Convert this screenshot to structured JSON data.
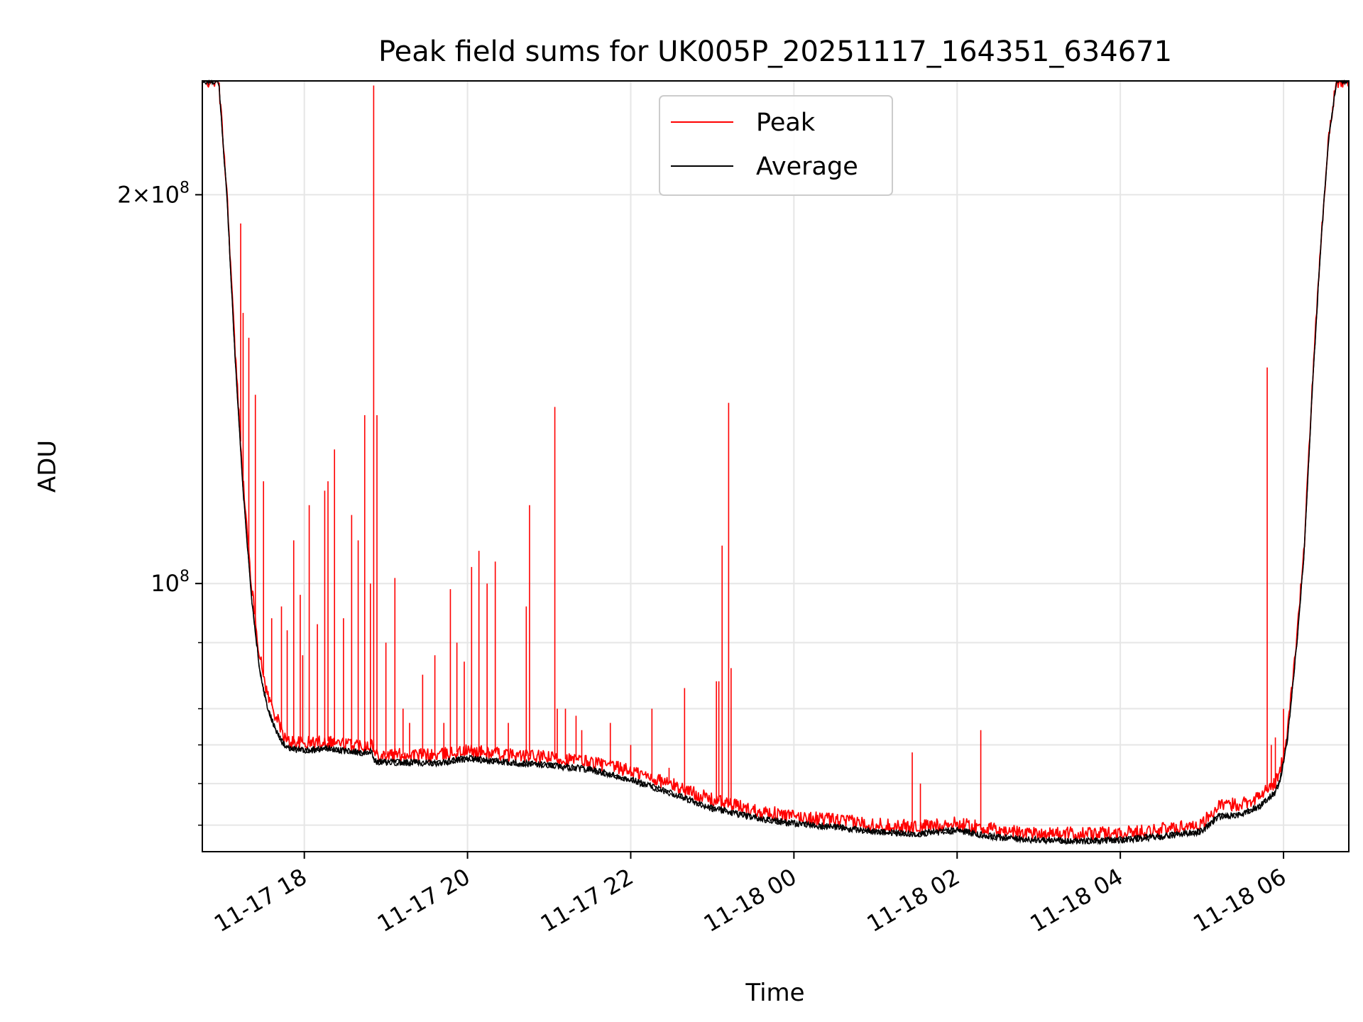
{
  "chart_data": {
    "type": "line",
    "title": "Peak field sums for UK005P_20251117_164351_634671",
    "xlabel": "Time",
    "ylabel": "ADU",
    "yscale": "log",
    "ylim": [
      62000000,
      245000000
    ],
    "xlim_hours": [
      16.75,
      30.8
    ],
    "grid": true,
    "legend_position": "upper center",
    "colors": {
      "Peak": "#ff0000",
      "Average": "#000000",
      "grid": "#e6e6e6"
    },
    "x_ticks": [
      {
        "h": 18,
        "label": "11-17 18"
      },
      {
        "h": 20,
        "label": "11-17 20"
      },
      {
        "h": 22,
        "label": "11-17 22"
      },
      {
        "h": 24,
        "label": "11-18 00"
      },
      {
        "h": 26,
        "label": "11-18 02"
      },
      {
        "h": 28,
        "label": "11-18 04"
      },
      {
        "h": 30,
        "label": "11-18 06"
      }
    ],
    "y_major_ticks": [
      {
        "v": 100000000,
        "mant": "",
        "base": "10",
        "exp": "8"
      },
      {
        "v": 200000000,
        "mant": "2×",
        "base": "10",
        "exp": "8"
      }
    ],
    "y_minor_ticks": [
      65000000,
      70000000,
      75000000,
      80000000,
      90000000
    ],
    "series": [
      {
        "name": "Average",
        "x_hours": [
          16.75,
          16.95,
          17.05,
          17.15,
          17.25,
          17.35,
          17.45,
          17.55,
          17.65,
          17.78,
          18.0,
          18.3,
          18.5,
          18.7,
          18.83,
          18.86,
          19.0,
          19.3,
          19.6,
          20.0,
          20.5,
          21.0,
          21.5,
          22.0,
          22.5,
          23.0,
          23.5,
          24.0,
          24.5,
          25.0,
          25.5,
          26.0,
          26.5,
          27.0,
          27.5,
          28.0,
          28.5,
          29.0,
          29.2,
          29.5,
          29.7,
          29.8,
          29.9,
          29.96,
          30.05,
          30.15,
          30.25,
          30.35,
          30.45,
          30.55,
          30.65,
          30.8
        ],
        "values": [
          245000000,
          245000000,
          200000000,
          150000000,
          118000000,
          98000000,
          86000000,
          80000000,
          77000000,
          74500000,
          74300000,
          74500000,
          74200000,
          74000000,
          74100000,
          72800000,
          72700000,
          72700000,
          72600000,
          73200000,
          72700000,
          72300000,
          71800000,
          70500000,
          68800000,
          67000000,
          65900000,
          65200000,
          64800000,
          64200000,
          64000000,
          64400000,
          63600000,
          63300000,
          63200000,
          63300000,
          63700000,
          64300000,
          66000000,
          66300000,
          67200000,
          68000000,
          69000000,
          70500000,
          76000000,
          88000000,
          105000000,
          140000000,
          180000000,
          220000000,
          245000000,
          245000000
        ]
      },
      {
        "name": "Peak",
        "x_hours": [
          16.75,
          16.95,
          17.05,
          17.15,
          17.25,
          17.35,
          17.45,
          17.55,
          17.65,
          17.78,
          18.0,
          18.3,
          18.5,
          18.7,
          18.83,
          18.86,
          19.0,
          19.3,
          19.6,
          20.0,
          20.5,
          21.0,
          21.5,
          22.0,
          22.5,
          23.0,
          23.5,
          24.0,
          24.5,
          25.0,
          25.5,
          26.0,
          26.5,
          27.0,
          27.5,
          28.0,
          28.5,
          29.0,
          29.2,
          29.5,
          29.7,
          29.8,
          29.9,
          29.96,
          30.05,
          30.15,
          30.25,
          30.35,
          30.45,
          30.55,
          30.65,
          30.8
        ],
        "values": [
          245000000,
          245000000,
          202000000,
          152000000,
          120000000,
          100000000,
          88000000,
          82000000,
          79000000,
          75500000,
          75200000,
          75500000,
          75100000,
          75000000,
          75100000,
          73800000,
          73700000,
          73700000,
          73600000,
          74200000,
          73700000,
          73300000,
          72800000,
          71600000,
          69900000,
          68000000,
          66800000,
          66000000,
          65600000,
          65100000,
          64800000,
          65200000,
          64400000,
          64100000,
          64000000,
          64100000,
          64500000,
          65200000,
          67200000,
          67600000,
          68400000,
          69200000,
          70200000,
          71500000,
          77000000,
          89000000,
          106000000,
          141000000,
          181000000,
          221000000,
          245000000,
          245000000
        ]
      }
    ],
    "peak_spikes": [
      {
        "h": 17.22,
        "v": 190000000
      },
      {
        "h": 17.25,
        "v": 162000000
      },
      {
        "h": 17.32,
        "v": 155000000
      },
      {
        "h": 17.4,
        "v": 140000000
      },
      {
        "h": 17.5,
        "v": 120000000
      },
      {
        "h": 17.6,
        "v": 94000000
      },
      {
        "h": 17.72,
        "v": 96000000
      },
      {
        "h": 17.79,
        "v": 92000000
      },
      {
        "h": 17.87,
        "v": 108000000
      },
      {
        "h": 17.95,
        "v": 98000000
      },
      {
        "h": 17.98,
        "v": 88000000
      },
      {
        "h": 18.06,
        "v": 115000000
      },
      {
        "h": 18.16,
        "v": 93000000
      },
      {
        "h": 18.25,
        "v": 118000000
      },
      {
        "h": 18.29,
        "v": 120000000
      },
      {
        "h": 18.37,
        "v": 127000000
      },
      {
        "h": 18.48,
        "v": 94000000
      },
      {
        "h": 18.58,
        "v": 113000000
      },
      {
        "h": 18.66,
        "v": 108000000
      },
      {
        "h": 18.74,
        "v": 135000000
      },
      {
        "h": 18.81,
        "v": 100000000
      },
      {
        "h": 18.85,
        "v": 243000000
      },
      {
        "h": 18.89,
        "v": 135000000
      },
      {
        "h": 19.0,
        "v": 90000000
      },
      {
        "h": 19.11,
        "v": 101000000
      },
      {
        "h": 19.21,
        "v": 80000000
      },
      {
        "h": 19.29,
        "v": 78000000
      },
      {
        "h": 19.45,
        "v": 85000000
      },
      {
        "h": 19.6,
        "v": 88000000
      },
      {
        "h": 19.71,
        "v": 78000000
      },
      {
        "h": 19.79,
        "v": 99000000
      },
      {
        "h": 19.87,
        "v": 90000000
      },
      {
        "h": 19.96,
        "v": 87000000
      },
      {
        "h": 20.05,
        "v": 103000000
      },
      {
        "h": 20.14,
        "v": 106000000
      },
      {
        "h": 20.24,
        "v": 100000000
      },
      {
        "h": 20.34,
        "v": 104000000
      },
      {
        "h": 20.5,
        "v": 78000000
      },
      {
        "h": 20.72,
        "v": 96000000
      },
      {
        "h": 20.76,
        "v": 115000000
      },
      {
        "h": 21.07,
        "v": 137000000
      },
      {
        "h": 21.1,
        "v": 80000000
      },
      {
        "h": 21.2,
        "v": 80000000
      },
      {
        "h": 21.33,
        "v": 79000000
      },
      {
        "h": 21.4,
        "v": 77000000
      },
      {
        "h": 21.75,
        "v": 78000000
      },
      {
        "h": 22.0,
        "v": 75000000
      },
      {
        "h": 22.26,
        "v": 80000000
      },
      {
        "h": 22.47,
        "v": 72000000
      },
      {
        "h": 22.66,
        "v": 83000000
      },
      {
        "h": 23.05,
        "v": 84000000
      },
      {
        "h": 23.08,
        "v": 84000000
      },
      {
        "h": 23.12,
        "v": 107000000
      },
      {
        "h": 23.2,
        "v": 138000000
      },
      {
        "h": 23.23,
        "v": 86000000
      },
      {
        "h": 25.45,
        "v": 74000000
      },
      {
        "h": 25.55,
        "v": 70000000
      },
      {
        "h": 26.29,
        "v": 77000000
      },
      {
        "h": 29.8,
        "v": 147000000
      },
      {
        "h": 29.85,
        "v": 75000000
      },
      {
        "h": 29.9,
        "v": 76000000
      },
      {
        "h": 30.0,
        "v": 80000000
      }
    ]
  }
}
